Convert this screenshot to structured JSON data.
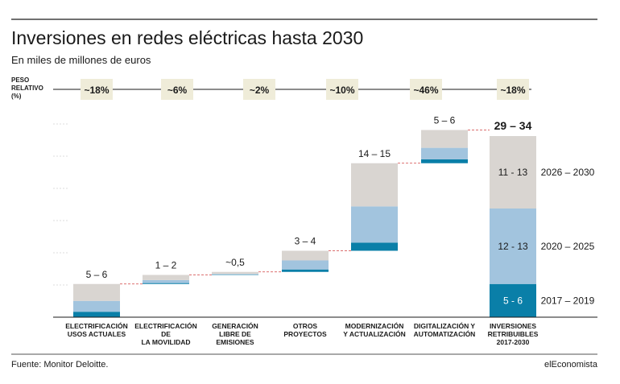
{
  "chart_data": {
    "type": "bar",
    "subtype": "stacked-waterfall",
    "title": "Inversiones en redes eléctricas hasta 2030",
    "subtitle": "En miles de millones de euros",
    "peso_header": [
      "PESO",
      "RELATIVO",
      "(%)"
    ],
    "categories": [
      [
        "ELECTRIFICACIÓN",
        "USOS ACTUALES"
      ],
      [
        "ELECTRIFICACIÓN",
        "DE",
        "LA MOVILIDAD"
      ],
      [
        "GENERACIÓN",
        "LIBRE DE",
        "EMISIONES"
      ],
      [
        "OTROS",
        "PROYECTOS"
      ],
      [
        "MODERNIZACIÓN",
        "Y ACTUALIZACIÓN"
      ],
      [
        "DIGITALIZACIÓN Y",
        "AUTOMATIZACIÓN"
      ],
      [
        "INVERSIONES",
        "RETRIBUIBLES",
        "2017-2030"
      ]
    ],
    "peso_relativo": [
      "~18%",
      "~6%",
      "~2%",
      "~10%",
      "~46%",
      "~18%"
    ],
    "total_label_values": [
      "5 – 6",
      "1 – 2",
      "~0,5",
      "3 – 4",
      "14 – 15",
      "5 – 6",
      "29 – 34"
    ],
    "series": [
      {
        "name": "2017 – 2019",
        "color": "#0a7fa8",
        "values": [
          0.9,
          0.15,
          0.05,
          0.4,
          1.35,
          0.65,
          5.5
        ]
      },
      {
        "name": "2020 – 2025",
        "color": "#a2c4de",
        "values": [
          1.8,
          0.5,
          0.1,
          1.5,
          6.0,
          1.9,
          12.5
        ]
      },
      {
        "name": "2026 – 2030",
        "color": "#d9d5d1",
        "values": [
          2.8,
          0.85,
          0.35,
          1.6,
          7.15,
          2.95,
          12.0
        ]
      }
    ],
    "total_segment_labels": [
      "5 - 6",
      "12 - 13",
      "11 - 13"
    ],
    "ylim": [
      0,
      32
    ],
    "grid": false
  },
  "footer": {
    "source": "Fuente: Monitor Deloitte.",
    "brand": "elEconomista"
  }
}
